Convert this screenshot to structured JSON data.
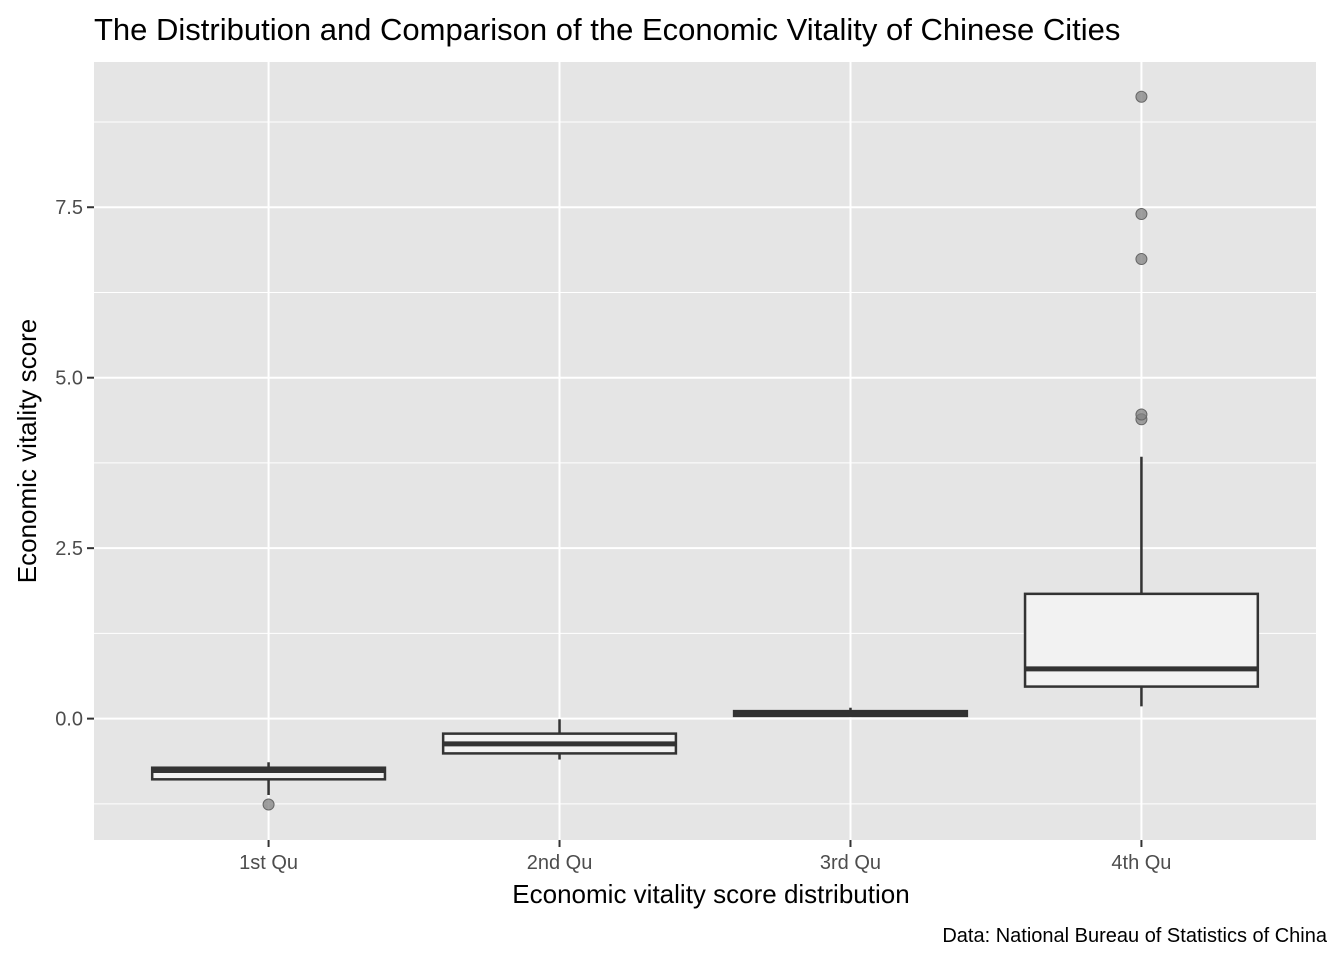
{
  "chart_data": {
    "type": "boxplot",
    "title": "The Distribution and Comparison of the Economic Vitality of Chinese Cities",
    "xlabel": "Economic vitality score distribution",
    "ylabel": "Economic vitality score",
    "caption": "Data: National Bureau of Statistics of China",
    "ylim": [
      -1.78,
      9.63
    ],
    "yticks": [
      0.0,
      2.5,
      5.0,
      7.5
    ],
    "ytick_labels": [
      "0.0",
      "2.5",
      "5.0",
      "7.5"
    ],
    "y_minor_ticks": [
      -1.25,
      1.25,
      3.75,
      6.25,
      8.75
    ],
    "categories": [
      "1st Qu",
      "2nd Qu",
      "3rd Qu",
      "4th Qu"
    ],
    "boxes": [
      {
        "category": "1st Qu",
        "whisker_low": -1.12,
        "q1": -0.89,
        "median": -0.76,
        "q3": -0.72,
        "whisker_high": -0.64,
        "outliers": [
          -1.26
        ]
      },
      {
        "category": "2nd Qu",
        "whisker_low": -0.6,
        "q1": -0.51,
        "median": -0.37,
        "q3": -0.22,
        "whisker_high": -0.01,
        "outliers": []
      },
      {
        "category": "3rd Qu",
        "whisker_low": 0.03,
        "q1": 0.04,
        "median": 0.07,
        "q3": 0.11,
        "whisker_high": 0.16,
        "outliers": []
      },
      {
        "category": "4th Qu",
        "whisker_low": 0.18,
        "q1": 0.47,
        "median": 0.73,
        "q3": 1.83,
        "whisker_high": 3.84,
        "outliers": [
          4.39,
          4.46,
          6.74,
          7.4,
          9.12
        ]
      }
    ],
    "grid": true,
    "colors": {
      "panel_bg": "#e5e5e5",
      "grid": "#ffffff",
      "box_fill": "#f2f2f2",
      "box_line": "#333333",
      "outlier": "#808080"
    }
  }
}
